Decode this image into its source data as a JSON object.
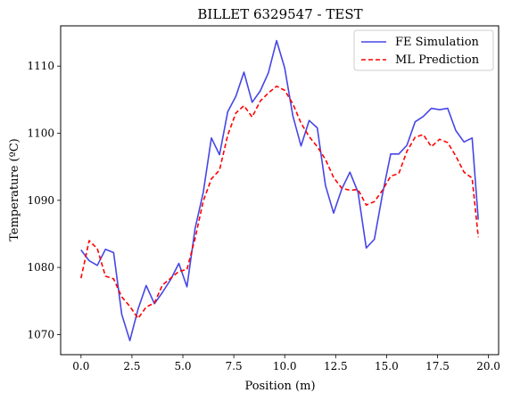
{
  "chart_data": {
    "type": "line",
    "title": "BILLET 6329547 - TEST",
    "xlabel": "Position (m)",
    "ylabel": "Temperature (ºC)",
    "xlim": [
      -1.0,
      20.5
    ],
    "ylim": [
      1067,
      1116
    ],
    "xticks": [
      "0.0",
      "2.5",
      "5.0",
      "7.5",
      "10.0",
      "12.5",
      "15.0",
      "17.5",
      "20.0"
    ],
    "yticks": [
      "1070",
      "1080",
      "1090",
      "1100",
      "1110"
    ],
    "legend_position": "top-right",
    "grid": false,
    "x": [
      0.0,
      0.4,
      0.8,
      1.2,
      1.6,
      2.0,
      2.4,
      2.8,
      3.2,
      3.6,
      4.0,
      4.4,
      4.8,
      5.2,
      5.6,
      6.0,
      6.4,
      6.8,
      7.2,
      7.6,
      8.0,
      8.4,
      8.8,
      9.2,
      9.6,
      10.0,
      10.4,
      10.8,
      11.2,
      11.6,
      12.0,
      12.4,
      12.8,
      13.2,
      13.6,
      14.0,
      14.4,
      14.8,
      15.2,
      15.6,
      16.0,
      16.4,
      16.8,
      17.2,
      17.6,
      18.0,
      18.4,
      18.8,
      19.2,
      19.5
    ],
    "series": [
      {
        "name": "FE Simulation",
        "color": "#4646e6",
        "style": "solid",
        "values": [
          1082.6,
          1081.0,
          1080.3,
          1082.7,
          1082.2,
          1073.0,
          1069.1,
          1073.8,
          1077.3,
          1074.6,
          1076.3,
          1078.2,
          1080.6,
          1077.1,
          1085.8,
          1091.2,
          1099.3,
          1096.8,
          1103.2,
          1105.5,
          1109.1,
          1104.6,
          1106.3,
          1109.0,
          1113.8,
          1109.7,
          1102.6,
          1098.1,
          1101.9,
          1100.8,
          1092.2,
          1088.1,
          1091.7,
          1094.2,
          1091.2,
          1082.9,
          1084.2,
          1090.9,
          1096.9,
          1096.9,
          1098.2,
          1101.7,
          1102.5,
          1103.7,
          1103.5,
          1103.7,
          1100.4,
          1098.7,
          1099.3,
          1087.1
        ]
      },
      {
        "name": "ML Prediction",
        "color": "#ff0000",
        "style": "dashed",
        "values": [
          1078.4,
          1084.0,
          1082.8,
          1078.7,
          1078.3,
          1075.6,
          1074.2,
          1072.4,
          1074.1,
          1074.7,
          1077.4,
          1078.4,
          1079.4,
          1079.7,
          1084.3,
          1089.9,
          1093.2,
          1094.5,
          1099.7,
          1103.0,
          1104.1,
          1102.4,
          1104.8,
          1106.0,
          1107.0,
          1106.4,
          1104.4,
          1101.5,
          1099.5,
          1098.0,
          1096.1,
          1093.4,
          1091.8,
          1091.5,
          1091.6,
          1089.3,
          1089.8,
          1091.5,
          1093.6,
          1094.0,
          1097.3,
          1099.4,
          1099.8,
          1098.0,
          1099.1,
          1098.6,
          1096.6,
          1094.2,
          1093.3,
          1084.5
        ]
      }
    ]
  }
}
